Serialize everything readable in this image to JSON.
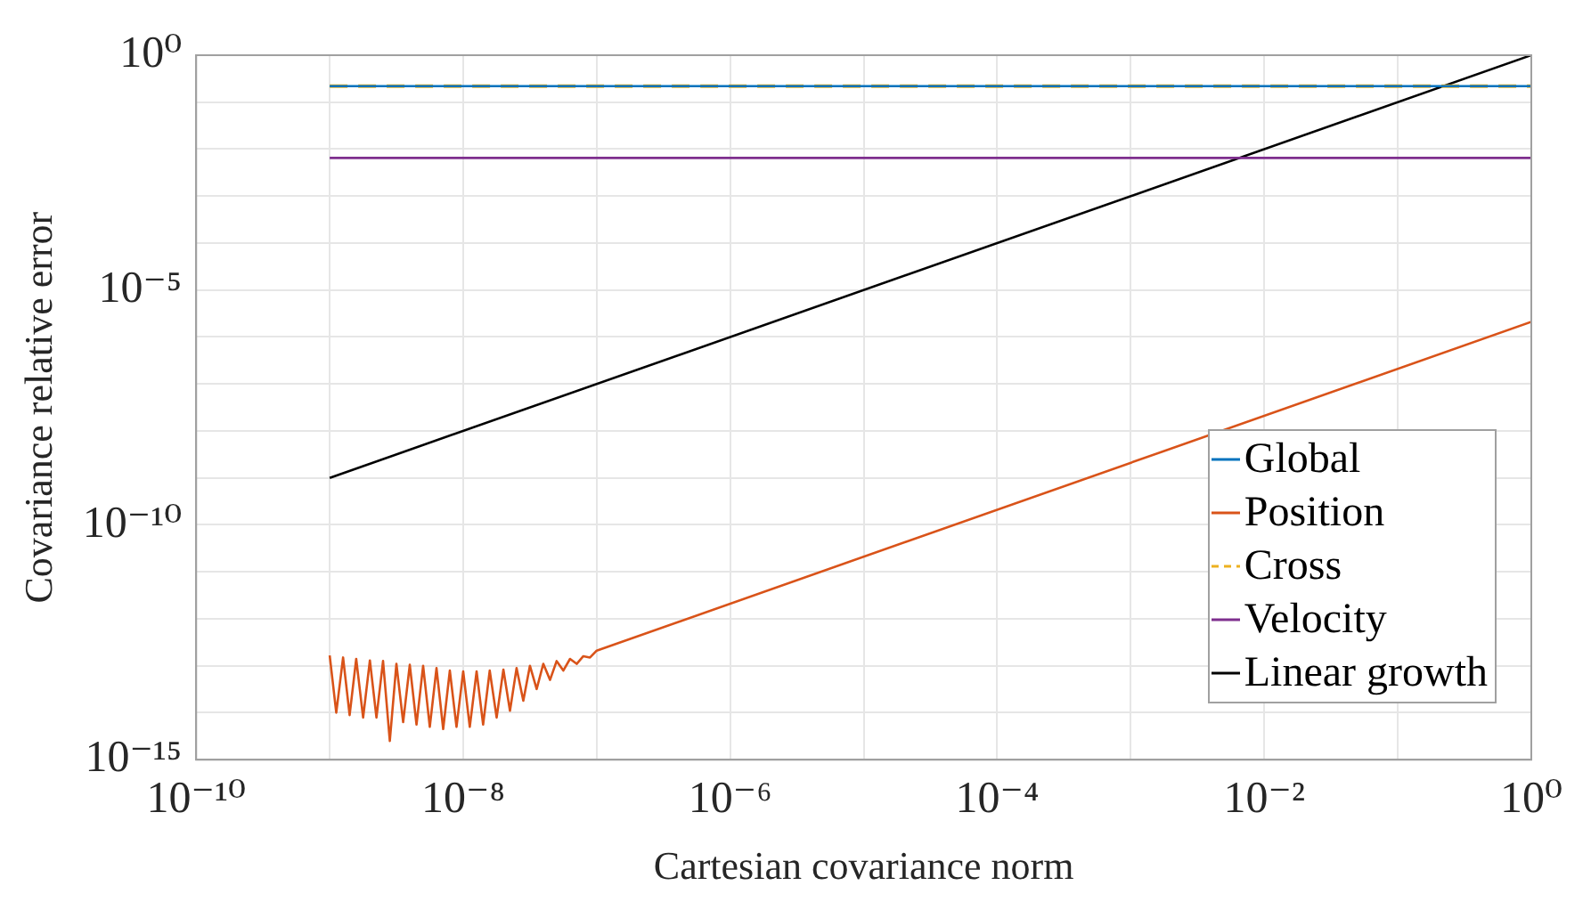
{
  "chart_data": {
    "type": "line",
    "xlabel": "Cartesian covariance norm",
    "ylabel": "Covariance relative error",
    "log": "xy",
    "grid": true,
    "legend": "bottom right",
    "marker": "none",
    "xlim": [
      1e-10,
      1
    ],
    "ylim": [
      1e-15,
      1
    ],
    "xticks": [
      {
        "value": 1e-10,
        "label": "10⁻¹⁰"
      },
      {
        "value": 1e-09,
        "label": null
      },
      {
        "value": 1e-08,
        "label": "10⁻⁸"
      },
      {
        "value": 1e-07,
        "label": null
      },
      {
        "value": 1e-06,
        "label": "10⁻⁶"
      },
      {
        "value": 1e-05,
        "label": null
      },
      {
        "value": 0.0001,
        "label": "10⁻⁴"
      },
      {
        "value": 0.001,
        "label": null
      },
      {
        "value": 0.01,
        "label": "10⁻²"
      },
      {
        "value": 0.1,
        "label": null
      },
      {
        "value": 1,
        "label": "10⁰"
      }
    ],
    "yticks": [
      {
        "value": 1e-15,
        "label": "10⁻¹⁵"
      },
      {
        "value": 1e-14,
        "label": null
      },
      {
        "value": 1e-13,
        "label": null
      },
      {
        "value": 1e-12,
        "label": null
      },
      {
        "value": 1e-11,
        "label": null
      },
      {
        "value": 1e-10,
        "label": "10⁻¹⁰"
      },
      {
        "value": 1e-09,
        "label": null
      },
      {
        "value": 1e-08,
        "label": null
      },
      {
        "value": 1e-07,
        "label": null
      },
      {
        "value": 1e-06,
        "label": null
      },
      {
        "value": 1e-05,
        "label": "10⁻⁵"
      },
      {
        "value": 0.0001,
        "label": null
      },
      {
        "value": 0.001,
        "label": null
      },
      {
        "value": 0.01,
        "label": null
      },
      {
        "value": 0.1,
        "label": null
      },
      {
        "value": 1,
        "label": "10⁰"
      }
    ],
    "series": [
      {
        "name": "Global",
        "color": "#0072bd",
        "line_style": "solid",
        "x": [
          1e-09,
          1
        ],
        "values": [
          0.22,
          0.22
        ]
      },
      {
        "name": "Position",
        "color": "#d95319",
        "line_style": "solid",
        "x": [
          1e-09,
          1.12e-09,
          1.26e-09,
          1.41e-09,
          1.58e-09,
          1.78e-09,
          2e-09,
          2.24e-09,
          2.51e-09,
          2.82e-09,
          3.16e-09,
          3.55e-09,
          3.98e-09,
          4.47e-09,
          5.01e-09,
          5.62e-09,
          6.31e-09,
          7.08e-09,
          7.94e-09,
          8.91e-09,
          1e-08,
          1.12e-08,
          1.26e-08,
          1.41e-08,
          1.58e-08,
          1.78e-08,
          2e-08,
          2.24e-08,
          2.51e-08,
          2.82e-08,
          3.16e-08,
          3.55e-08,
          3.98e-08,
          4.47e-08,
          5.01e-08,
          5.62e-08,
          6.31e-08,
          7.08e-08,
          7.94e-08,
          8.91e-08,
          1e-07,
          1
        ],
        "values": [
          1.66e-13,
          1e-14,
          1.5e-13,
          8.9e-15,
          1.4e-13,
          7.9e-15,
          1.3e-13,
          7.9e-15,
          1.26e-13,
          2.5e-15,
          1.1e-13,
          6.3e-15,
          1.05e-13,
          5.6e-15,
          1e-13,
          5e-15,
          8.9e-14,
          4.5e-15,
          7.9e-14,
          5e-15,
          7.6e-14,
          5e-15,
          7.6e-14,
          5.6e-15,
          7.9e-14,
          7.9e-15,
          8.3e-14,
          1.1e-14,
          8.9e-14,
          1.8e-14,
          1e-13,
          3.2e-14,
          1.1e-13,
          5e-14,
          1.26e-13,
          7.9e-14,
          1.4e-13,
          1.1e-13,
          1.6e-13,
          1.5e-13,
          2.1e-13,
          2.1e-06
        ]
      },
      {
        "name": "Cross",
        "color": "#edb120",
        "line_style": "dashed",
        "x": [
          1e-09,
          1
        ],
        "values": [
          0.22,
          0.22
        ]
      },
      {
        "name": "Velocity",
        "color": "#7e2f8e",
        "line_style": "solid",
        "x": [
          1e-09,
          1
        ],
        "values": [
          0.0065,
          0.0065
        ]
      },
      {
        "name": "Linear growth",
        "color": "#000000",
        "line_style": "solid",
        "x": [
          1e-09,
          1
        ],
        "values": [
          1e-09,
          1
        ]
      }
    ]
  }
}
